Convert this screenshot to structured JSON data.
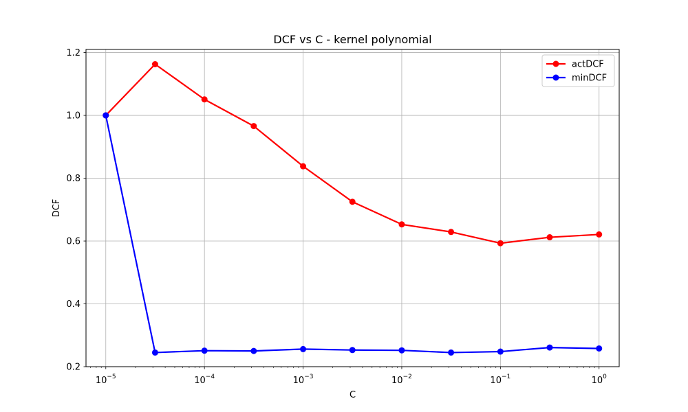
{
  "chart_data": {
    "type": "line",
    "title": "DCF vs C - kernel polynomial",
    "xlabel": "C",
    "ylabel": "DCF",
    "x_scale": "log",
    "x": [
      1e-05,
      3.16e-05,
      0.0001,
      0.000316,
      0.001,
      0.00316,
      0.01,
      0.0316,
      0.1,
      0.316,
      1
    ],
    "xlim": [
      6.3e-06,
      1.6
    ],
    "ylim": [
      0.2,
      1.21
    ],
    "x_ticks": [
      {
        "value": 1e-05,
        "base": "10",
        "exp": "−5"
      },
      {
        "value": 0.0001,
        "base": "10",
        "exp": "−4"
      },
      {
        "value": 0.001,
        "base": "10",
        "exp": "−3"
      },
      {
        "value": 0.01,
        "base": "10",
        "exp": "−2"
      },
      {
        "value": 0.1,
        "base": "10",
        "exp": "−1"
      },
      {
        "value": 1,
        "base": "10",
        "exp": "0"
      }
    ],
    "y_ticks": [
      {
        "value": 0.2,
        "label": "0.2"
      },
      {
        "value": 0.4,
        "label": "0.4"
      },
      {
        "value": 0.6,
        "label": "0.6"
      },
      {
        "value": 0.8,
        "label": "0.8"
      },
      {
        "value": 1.0,
        "label": "1.0"
      },
      {
        "value": 1.2,
        "label": "1.2"
      }
    ],
    "grid": true,
    "legend": "top-right",
    "series": [
      {
        "name": "actDCF",
        "color": "#ff0000",
        "values": [
          1.0,
          1.163,
          1.051,
          0.966,
          0.838,
          0.725,
          0.653,
          0.629,
          0.593,
          0.612,
          0.621
        ]
      },
      {
        "name": "minDCF",
        "color": "#0000ff",
        "values": [
          1.0,
          0.245,
          0.251,
          0.25,
          0.256,
          0.253,
          0.252,
          0.245,
          0.248,
          0.261,
          0.258
        ]
      }
    ]
  }
}
